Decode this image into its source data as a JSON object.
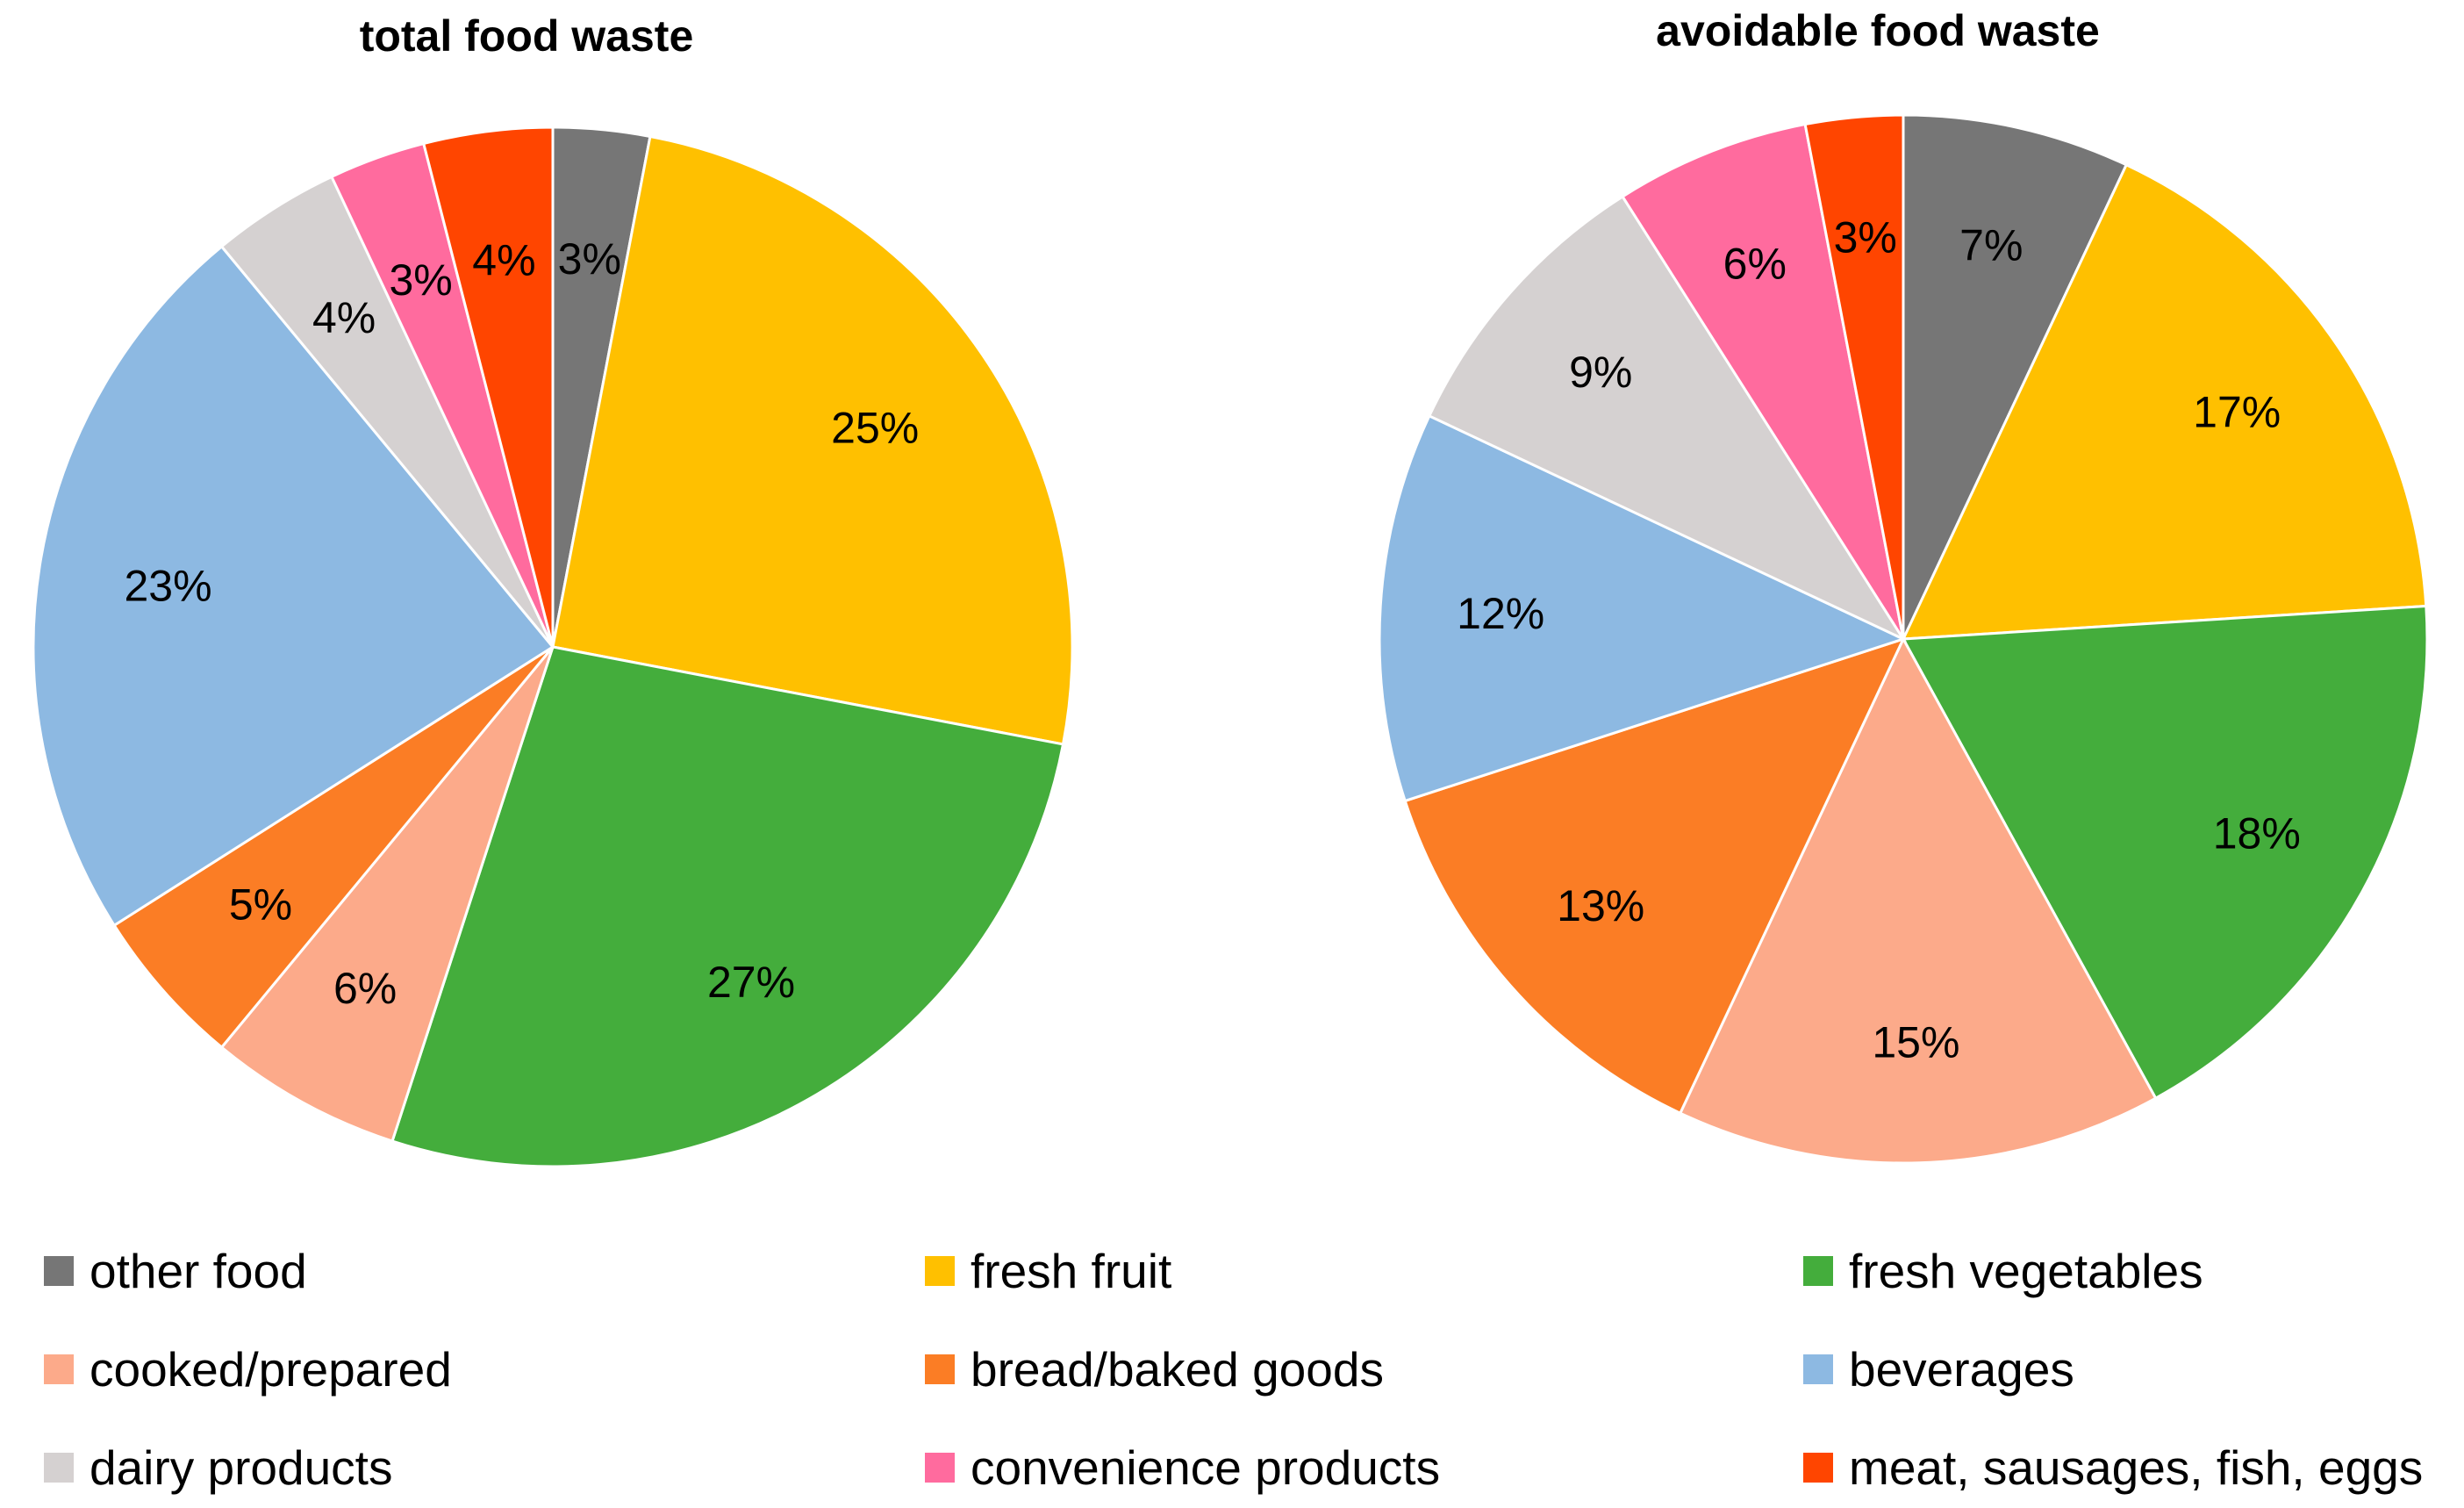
{
  "chart_data": [
    {
      "type": "pie",
      "title": "total food waste",
      "start_angle_deg": 0,
      "direction": "clockwise",
      "slices": [
        {
          "category": "other food",
          "value": 3,
          "label": "3%"
        },
        {
          "category": "fresh fruit",
          "value": 25,
          "label": "25%"
        },
        {
          "category": "fresh vegetables",
          "value": 27,
          "label": "27%"
        },
        {
          "category": "cooked/prepared",
          "value": 6,
          "label": "6%"
        },
        {
          "category": "bread/baked goods",
          "value": 5,
          "label": "5%"
        },
        {
          "category": "beverages",
          "value": 23,
          "label": "23%"
        },
        {
          "category": "dairy products",
          "value": 4,
          "label": "4%"
        },
        {
          "category": "convenience products",
          "value": 3,
          "label": "3%"
        },
        {
          "category": "meat, sausages, fish, eggs",
          "value": 4,
          "label": "4%"
        }
      ]
    },
    {
      "type": "pie",
      "title": "avoidable food waste",
      "start_angle_deg": 0,
      "direction": "clockwise",
      "slices": [
        {
          "category": "other food",
          "value": 7,
          "label": "7%"
        },
        {
          "category": "fresh fruit",
          "value": 17,
          "label": "17%"
        },
        {
          "category": "fresh vegetables",
          "value": 18,
          "label": "18%"
        },
        {
          "category": "cooked/prepared",
          "value": 15,
          "label": "15%"
        },
        {
          "category": "bread/baked goods",
          "value": 13,
          "label": "13%"
        },
        {
          "category": "beverages",
          "value": 12,
          "label": "12%"
        },
        {
          "category": "dairy products",
          "value": 9,
          "label": "9%"
        },
        {
          "category": "convenience products",
          "value": 6,
          "label": "6%"
        },
        {
          "category": "meat, sausages, fish, eggs",
          "value": 3,
          "label": "3%"
        }
      ]
    }
  ],
  "legend": {
    "placement": "bottom",
    "columns": 3,
    "items": [
      {
        "name": "other food",
        "color": "#767676"
      },
      {
        "name": "fresh fruit",
        "color": "#FFC000"
      },
      {
        "name": "fresh vegetables",
        "color": "#44AD3C"
      },
      {
        "name": "cooked/prepared",
        "color": "#FCAA8A"
      },
      {
        "name": "bread/baked goods",
        "color": "#FB7D25"
      },
      {
        "name": "beverages",
        "color": "#8DB9E2"
      },
      {
        "name": "dairy products",
        "color": "#D5D1D1"
      },
      {
        "name": "convenience products",
        "color": "#FF6B9E"
      },
      {
        "name": "meat, sausages, fish, eggs",
        "color": "#FF4500"
      }
    ]
  }
}
